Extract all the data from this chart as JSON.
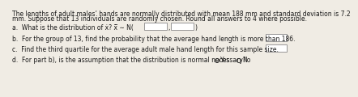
{
  "title_line1": "The lengths of adult males’ hands are normally distributed with mean 188 mm and standard deviation is 7.2",
  "title_line2": "mm. Suppose that 13 individuals are randomly chosen. Round all answers to 4 where possible.",
  "q_a_prefix": "a.  What is the distribution of ẋ? ẋ̅ ∼ N(",
  "q_b": "b.  For the group of 13, find the probability that the average hand length is more than 186.",
  "q_c": "c.  Find the third quartile for the average adult male hand length for this sample size.",
  "q_d": "d.  For part b), is the assumption that the distribution is normal necessary?",
  "yes_label": "Yes",
  "no_label": "No",
  "bg_color": "#f0ece4",
  "text_color": "#1a1a1a",
  "box_edge": "#888888",
  "font_size": 5.5
}
